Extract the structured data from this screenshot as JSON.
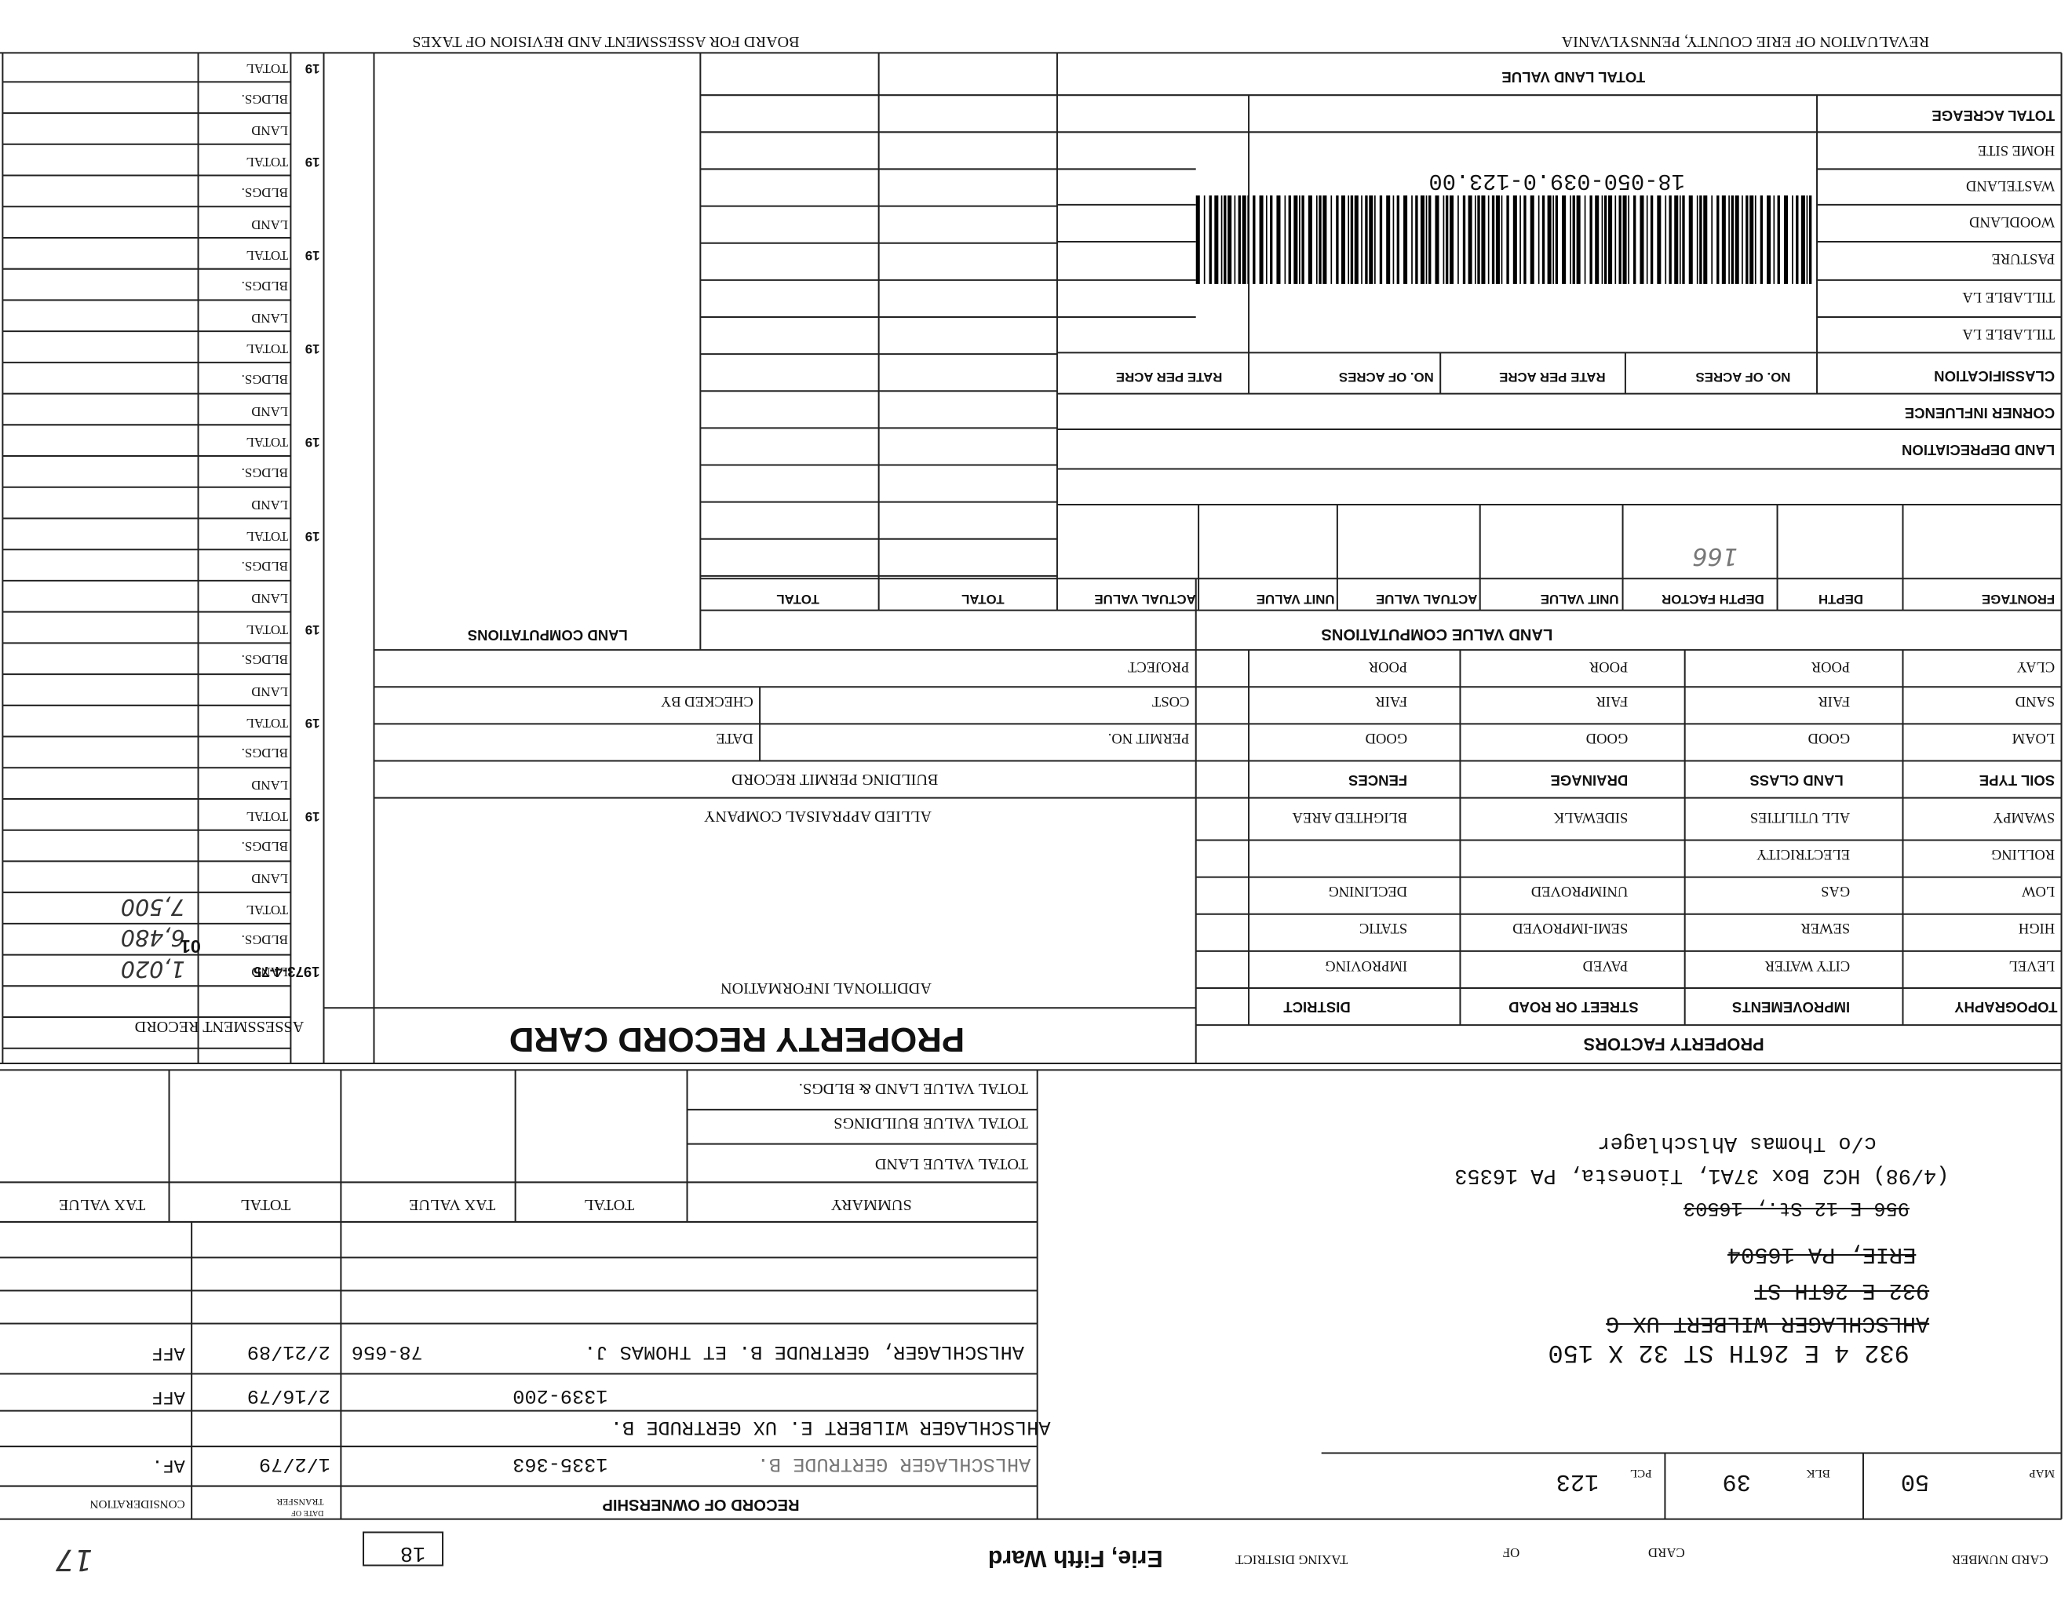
{
  "header": {
    "county": "REVALUATION OF ERIE COUNTY, PENNSYLVANIA",
    "board": "BOARD FOR ASSESSMENT AND REVISION OF TAXES"
  },
  "card": {
    "card_number_label": "CARD NUMBER",
    "card_label": "CARD",
    "of_label": "OF",
    "taxing_district_label": "TAXING DISTRICT",
    "taxing_district": "Erie, Fifth Ward",
    "ward_number": "18",
    "card_number": "17"
  },
  "parcel": {
    "map_label": "MAP",
    "map": "50",
    "blk_label": "BLK",
    "blk": "39",
    "pcl_label": "PCL",
    "pcl": "123",
    "parcel_id": "18-050-039.0-123.00"
  },
  "address": {
    "current": "932 4 E 26TH ST  32 X 150",
    "struck": [
      "AHLSCHLAGER WILBERT UX G",
      "932 E 26TH ST",
      "ERIE, PA 16504",
      "956 E 12 St., 16503"
    ],
    "mailing": "(4/98) HC2 Box 37A1, Tionesta, PA 16353",
    "care_of": "c/o Thomas Ahlschlager"
  },
  "ownership": {
    "title": "RECORD OF OWNERSHIP",
    "transfer_label": "TRANSFER",
    "date_label": "DATE OF",
    "consideration_label": "CONSIDERATION",
    "records": [
      {
        "owner": "AHLSCHLAGER GERTRUDE B.",
        "deed": "1335-363",
        "date": "1/2/79",
        "consideration": "AF."
      },
      {
        "owner": "AHLSCHLAGER WILBERT E. UX GERTRUDE B.",
        "deed": "1339-200",
        "date": "2/16/79",
        "consideration": "AFF"
      },
      {
        "owner": "AHLSCHLAGER, GERTRUDE B. ET THOMAS J.",
        "deed": "78-656",
        "date": "2/21/89",
        "consideration": "AFF"
      }
    ]
  },
  "summary": {
    "columns": [
      "SUMMARY",
      "TOTAL",
      "TAX VALUE",
      "TOTAL",
      "TAX VALUE"
    ],
    "rows": [
      "TOTAL VALUE LAND",
      "TOTAL VALUE BUILDINGS",
      "TOTAL VALUE LAND & BLDGS."
    ]
  },
  "assessment": {
    "title": "ASSESSMENT RECORD",
    "groups": [
      {
        "year": "1973-4-75",
        "land": "LAND",
        "bldgs": "BLDGS.",
        "total": "TOTAL",
        "land_value": "1,020",
        "bldgs_value": "6,480",
        "total_value": "7,500",
        "code": "01"
      },
      {
        "year": "19",
        "land": "LAND",
        "bldgs": "BLDGS.",
        "total": "TOTAL"
      },
      {
        "year": "19",
        "land": "LAND",
        "bldgs": "BLDGS.",
        "total": "TOTAL"
      },
      {
        "year": "19",
        "land": "LAND",
        "bldgs": "BLDGS.",
        "total": "TOTAL"
      },
      {
        "year": "19",
        "land": "LAND",
        "bldgs": "BLDGS.",
        "total": "TOTAL"
      },
      {
        "year": "19",
        "land": "LAND",
        "bldgs": "BLDGS.",
        "total": "TOTAL"
      },
      {
        "year": "19",
        "land": "LAND",
        "bldgs": "BLDGS.",
        "total": "TOTAL"
      },
      {
        "year": "19",
        "land": "LAND",
        "bldgs": "BLDGS.",
        "total": "TOTAL"
      },
      {
        "year": "19",
        "land": "LAND",
        "bldgs": "BLDGS.",
        "total": "TOTAL"
      },
      {
        "year": "19",
        "land": "LAND",
        "bldgs": "BLDGS.",
        "total": "TOTAL"
      }
    ]
  },
  "property_factors": {
    "title": "PROPERTY FACTORS",
    "columns": [
      "TOPOGRAPHY",
      "IMPROVEMENTS",
      "STREET OR ROAD",
      "DISTRICT"
    ],
    "topography": [
      "LEVEL",
      "HIGH",
      "LOW",
      "ROLLING",
      "SWAMPY"
    ],
    "improvements": [
      "CITY WATER",
      "SEWER",
      "GAS",
      "ELECTRICITY",
      "ALL UTILITIES"
    ],
    "street_or_road": [
      "PAVED",
      "SEMI-IMPROVED",
      "UNIMPROVED",
      "SIDEWALK"
    ],
    "district": [
      "IMPROVING",
      "STATIC",
      "DECLINING",
      "BLIGHTED AREA"
    ]
  },
  "soil": {
    "columns": [
      "SOIL TYPE",
      "LAND CLASS",
      "DRAINAGE",
      "FENCES"
    ],
    "soil_type": [
      "LOAM",
      "SAND",
      "CLAY"
    ],
    "land_class": [
      "GOOD",
      "FAIR",
      "POOR"
    ],
    "drainage": [
      "GOOD",
      "FAIR",
      "POOR"
    ],
    "fences": [
      "GOOD",
      "FAIR",
      "POOR"
    ]
  },
  "land_value": {
    "title": "LAND VALUE COMPUTATIONS",
    "columns": [
      "FRONTAGE",
      "DEPTH",
      "DEPTH FACTOR",
      "UNIT VALUE",
      "ACTUAL VALUE",
      "UNIT VALUE",
      "ACTUAL VALUE",
      "TOTAL",
      "TOTAL"
    ],
    "depth_factor_entry": "166",
    "land_depreciation": "LAND DEPRECIATION",
    "corner_influence": "CORNER INFLUENCE",
    "classification": "CLASSIFICATION",
    "class_columns": [
      "NO. OF ACRES",
      "RATE PER ACRE",
      "NO. OF ACRES",
      "RATE PER ACRE"
    ],
    "acreage_rows": [
      "TILLABLE LA",
      "TILLABLE LA",
      "PASTURE",
      "WOODLAND",
      "WASTELAND",
      "HOME SITE"
    ],
    "total_acreage": "TOTAL ACREAGE",
    "total_land_value": "TOTAL LAND VALUE"
  },
  "building_permit": {
    "title": "BUILDING PERMIT RECORD",
    "permit_no": "PERMIT NO.",
    "date": "DATE",
    "cost": "COST",
    "checked_by": "CHECKED BY",
    "project": "PROJECT"
  },
  "titles": {
    "card_title": "PROPERTY RECORD CARD",
    "additional": "ADDITIONAL INFORMATION",
    "appraiser": "ALLIED APPRAISAL COMPANY",
    "land_computations": "LAND COMPUTATIONS"
  }
}
